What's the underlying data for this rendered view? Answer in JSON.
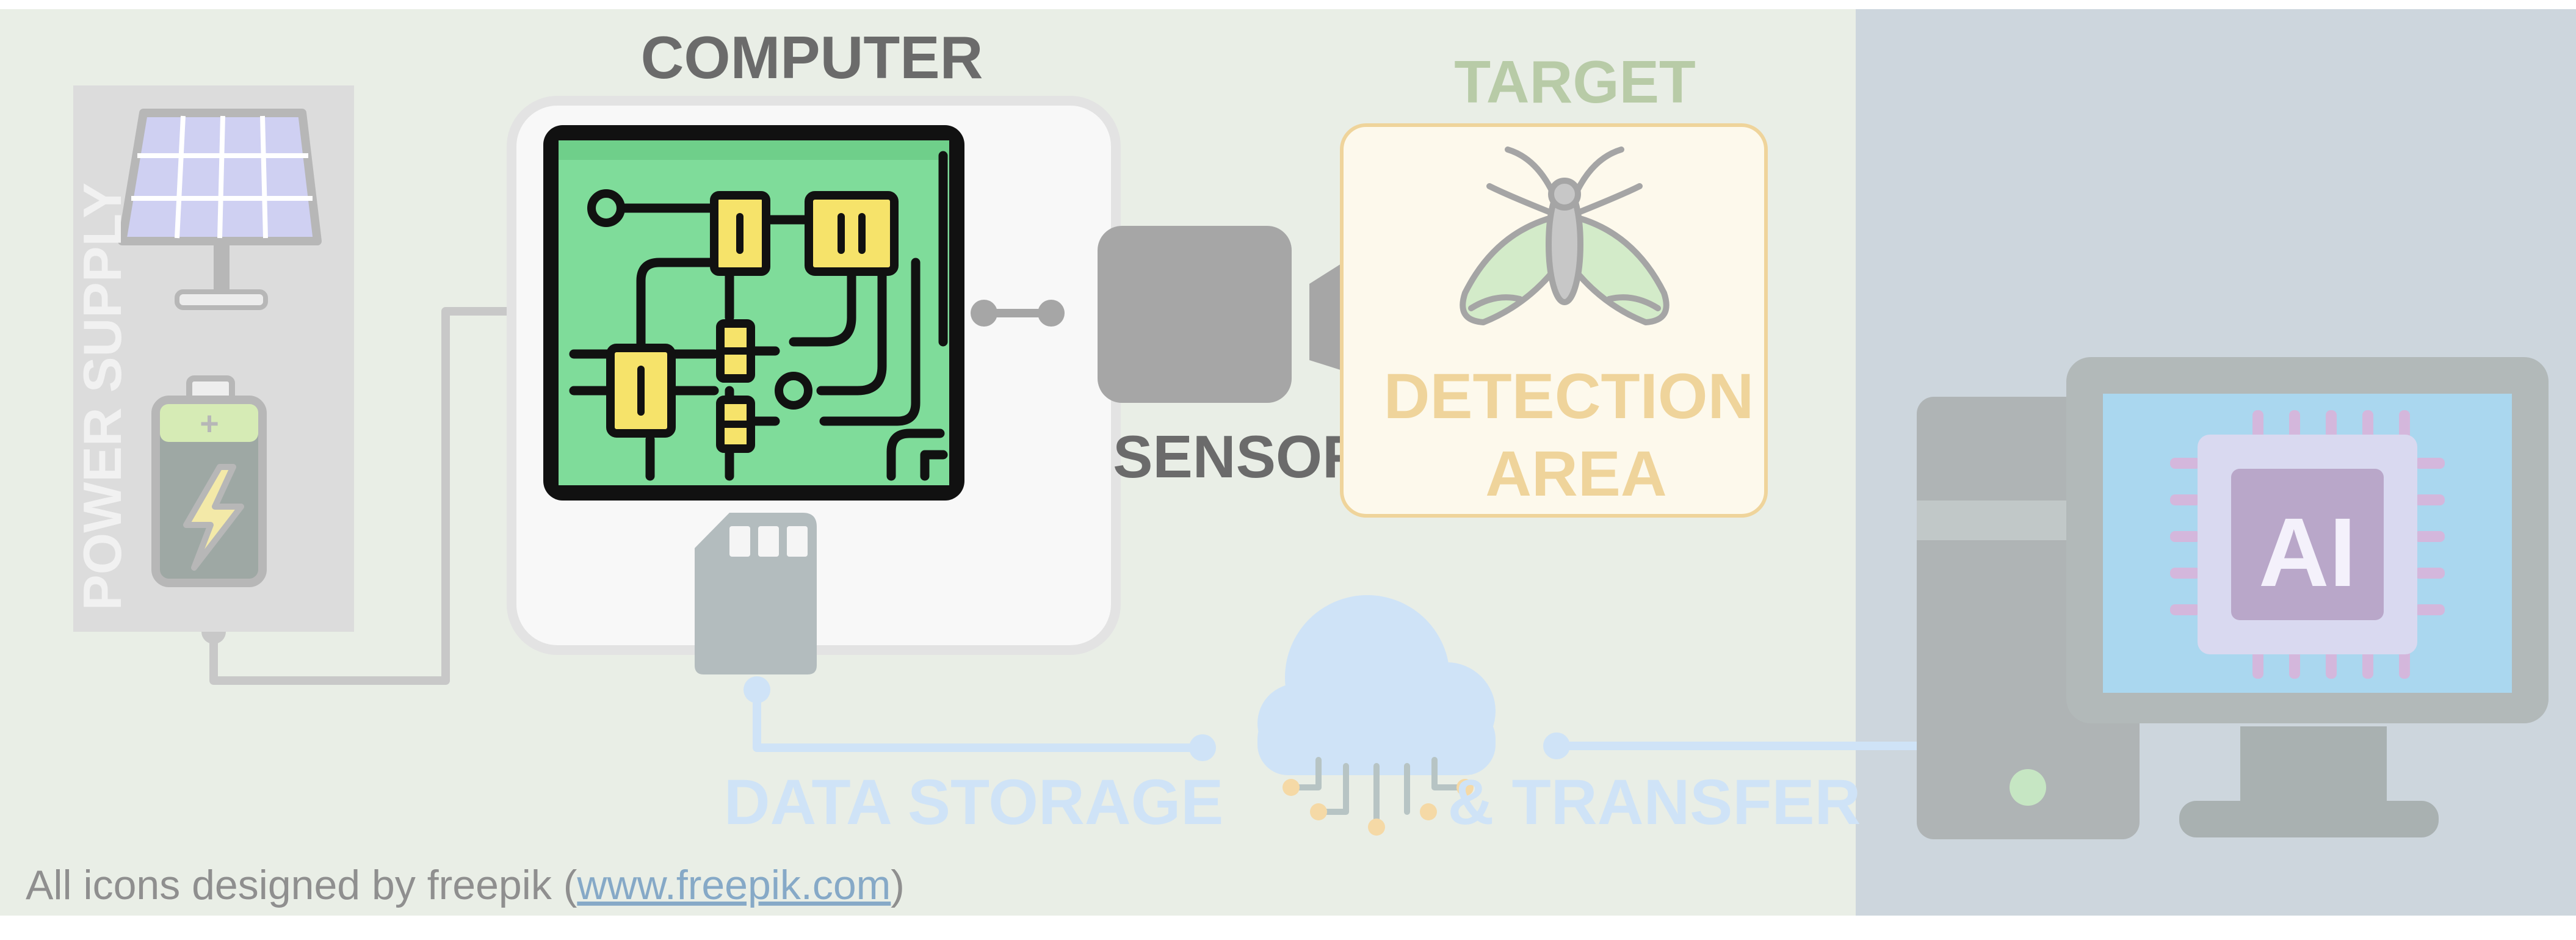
{
  "labels": {
    "computer": "COMPUTER",
    "target": "TARGET",
    "sensor": "SENSOR",
    "detection_line1": "DETECTION",
    "detection_line2": "AREA",
    "power_supply": "POWER SUPPLY",
    "data_storage": "DATA STORAGE",
    "transfer": "& TRANSFER",
    "ai_chip": "AI"
  },
  "credit": {
    "prefix": "All icons designed by freepik (",
    "link_text": "www.freepik.com",
    "suffix": ")"
  },
  "colors": {
    "left_panel_bg": "#e9eee6",
    "right_panel_bg": "#cdd6dd",
    "board_green": "#7fdc9a",
    "chip_yellow": "#f6e36a",
    "sensor_gray": "#a6a6a6",
    "label_gray": "#6b6b6b",
    "target_green": "#b8cba7",
    "detection_yellow": "#efd49b",
    "storage_blue": "#cfe3f7",
    "link_blue": "#86a9c7"
  }
}
